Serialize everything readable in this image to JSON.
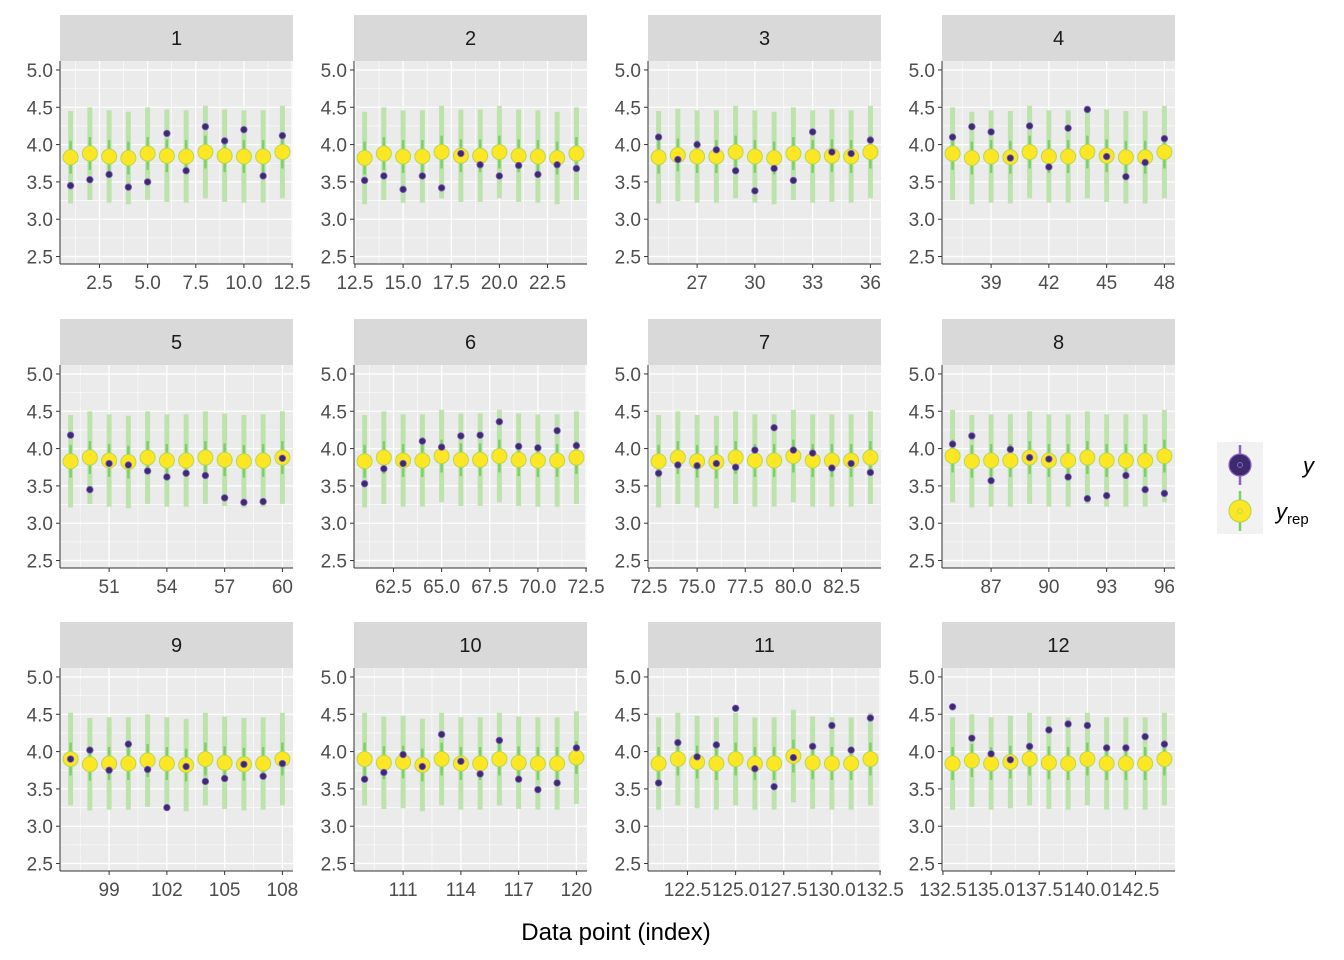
{
  "chart_data": {
    "type": "scatter",
    "xlabel": "Data point (index)",
    "ylabel": "",
    "ylim": [
      2.4,
      5.12
    ],
    "yticks": [
      "2.5",
      "3.0",
      "3.5",
      "4.0",
      "4.5",
      "5.0"
    ],
    "grid": true,
    "legend": {
      "position": "right",
      "entries": [
        {
          "label": "y",
          "kind": "y"
        },
        {
          "label": "y",
          "sub": "rep",
          "kind": "yrep"
        }
      ]
    },
    "colors": {
      "panel_bg": "#ebebeb",
      "strip_bg": "#d9d9d9",
      "grid": "#ffffff",
      "y_point": "#3d2b6e",
      "y_outline": "#8b63c7",
      "yrep_point": "#fde725",
      "yrep_outline": "#b7d94d",
      "interval_outer": "#b9e3a6",
      "interval_inner": "#7bd06a"
    },
    "facets": [
      {
        "label": "1",
        "xlim": [
          0.45,
          12.55
        ],
        "xticks": [
          "2.5",
          "5.0",
          "7.5",
          "10.0",
          "12.5"
        ],
        "x": [
          1,
          2,
          3,
          4,
          5,
          6,
          7,
          8,
          9,
          10,
          11,
          12
        ],
        "y": [
          3.45,
          3.53,
          3.6,
          3.43,
          3.5,
          4.15,
          3.65,
          4.24,
          4.05,
          4.2,
          3.58,
          4.12
        ],
        "yrep": [
          3.83,
          3.88,
          3.84,
          3.82,
          3.88,
          3.85,
          3.84,
          3.9,
          3.85,
          3.84,
          3.84,
          3.9
        ]
      },
      {
        "label": "2",
        "xlim": [
          12.45,
          24.55
        ],
        "xticks": [
          "12.5",
          "15.0",
          "17.5",
          "20.0",
          "22.5"
        ],
        "x": [
          13,
          14,
          15,
          16,
          17,
          18,
          19,
          20,
          21,
          22,
          23,
          24
        ],
        "y": [
          3.52,
          3.58,
          3.4,
          3.58,
          3.42,
          3.88,
          3.73,
          3.58,
          3.72,
          3.6,
          3.73,
          3.68
        ],
        "yrep": [
          3.82,
          3.88,
          3.84,
          3.84,
          3.9,
          3.85,
          3.85,
          3.9,
          3.85,
          3.84,
          3.82,
          3.88
        ]
      },
      {
        "label": "3",
        "xlim": [
          24.45,
          36.55
        ],
        "xticks": [
          "27",
          "30",
          "33",
          "36"
        ],
        "x": [
          25,
          26,
          27,
          28,
          29,
          30,
          31,
          32,
          33,
          34,
          35,
          36
        ],
        "y": [
          4.1,
          3.8,
          4.0,
          3.93,
          3.65,
          3.38,
          3.68,
          3.52,
          4.17,
          3.9,
          3.88,
          4.06
        ],
        "yrep": [
          3.83,
          3.86,
          3.84,
          3.84,
          3.9,
          3.84,
          3.82,
          3.88,
          3.84,
          3.85,
          3.84,
          3.9
        ]
      },
      {
        "label": "4",
        "xlim": [
          36.45,
          48.55
        ],
        "xticks": [
          "39",
          "42",
          "45",
          "48"
        ],
        "x": [
          37,
          38,
          39,
          40,
          41,
          42,
          43,
          44,
          45,
          46,
          47,
          48
        ],
        "y": [
          4.1,
          4.24,
          4.17,
          3.82,
          4.25,
          3.7,
          4.22,
          4.47,
          3.84,
          3.57,
          3.76,
          4.08
        ],
        "yrep": [
          3.88,
          3.82,
          3.84,
          3.83,
          3.9,
          3.84,
          3.84,
          3.9,
          3.85,
          3.83,
          3.83,
          3.9
        ]
      },
      {
        "label": "5",
        "xlim": [
          48.45,
          60.55
        ],
        "xticks": [
          "51",
          "54",
          "57",
          "60"
        ],
        "x": [
          49,
          50,
          51,
          52,
          53,
          54,
          55,
          56,
          57,
          58,
          59,
          60
        ],
        "y": [
          4.18,
          3.45,
          3.8,
          3.78,
          3.7,
          3.62,
          3.67,
          3.64,
          3.34,
          3.28,
          3.29,
          3.87
        ],
        "yrep": [
          3.83,
          3.88,
          3.84,
          3.82,
          3.88,
          3.84,
          3.84,
          3.88,
          3.85,
          3.83,
          3.84,
          3.88
        ]
      },
      {
        "label": "6",
        "xlim": [
          60.45,
          72.55
        ],
        "xticks": [
          "62.5",
          "65.0",
          "67.5",
          "70.0",
          "72.5"
        ],
        "x": [
          61,
          62,
          63,
          64,
          65,
          66,
          67,
          68,
          69,
          70,
          71,
          72
        ],
        "y": [
          3.53,
          3.73,
          3.8,
          4.1,
          4.02,
          4.17,
          4.18,
          4.36,
          4.03,
          4.01,
          4.24,
          4.04
        ],
        "yrep": [
          3.83,
          3.88,
          3.84,
          3.84,
          3.9,
          3.85,
          3.85,
          3.9,
          3.85,
          3.84,
          3.84,
          3.88
        ]
      },
      {
        "label": "7",
        "xlim": [
          72.45,
          84.55
        ],
        "xticks": [
          "72.5",
          "75.0",
          "77.5",
          "80.0",
          "82.5"
        ],
        "x": [
          73,
          74,
          75,
          76,
          77,
          78,
          79,
          80,
          81,
          82,
          83,
          84
        ],
        "y": [
          3.67,
          3.78,
          3.77,
          3.8,
          3.75,
          3.98,
          4.28,
          3.98,
          3.94,
          3.74,
          3.8,
          3.68
        ],
        "yrep": [
          3.83,
          3.88,
          3.83,
          3.82,
          3.88,
          3.84,
          3.84,
          3.9,
          3.84,
          3.84,
          3.84,
          3.88
        ]
      },
      {
        "label": "8",
        "xlim": [
          84.45,
          96.55
        ],
        "xticks": [
          "87",
          "90",
          "93",
          "96"
        ],
        "x": [
          85,
          86,
          87,
          88,
          89,
          90,
          91,
          92,
          93,
          94,
          95,
          96
        ],
        "y": [
          4.06,
          4.17,
          3.57,
          3.99,
          3.88,
          3.86,
          3.62,
          3.33,
          3.37,
          3.64,
          3.45,
          3.4
        ],
        "yrep": [
          3.9,
          3.83,
          3.84,
          3.84,
          3.88,
          3.84,
          3.84,
          3.88,
          3.84,
          3.84,
          3.84,
          3.9
        ]
      },
      {
        "label": "9",
        "xlim": [
          96.45,
          108.55
        ],
        "xticks": [
          "99",
          "102",
          "105",
          "108"
        ],
        "x": [
          97,
          98,
          99,
          100,
          101,
          102,
          103,
          104,
          105,
          106,
          107,
          108
        ],
        "y": [
          3.9,
          4.02,
          3.75,
          4.1,
          3.76,
          3.25,
          3.8,
          3.6,
          3.64,
          3.83,
          3.67,
          3.84
        ],
        "yrep": [
          3.9,
          3.83,
          3.84,
          3.84,
          3.88,
          3.84,
          3.82,
          3.9,
          3.85,
          3.83,
          3.84,
          3.9
        ]
      },
      {
        "label": "10",
        "xlim": [
          108.45,
          120.55
        ],
        "xticks": [
          "111",
          "114",
          "117",
          "120"
        ],
        "x": [
          109,
          110,
          111,
          112,
          113,
          114,
          115,
          116,
          117,
          118,
          119,
          120
        ],
        "y": [
          3.63,
          3.72,
          3.96,
          3.8,
          4.23,
          3.87,
          3.7,
          4.15,
          3.63,
          3.49,
          3.58,
          4.05
        ],
        "yrep": [
          3.9,
          3.85,
          3.86,
          3.82,
          3.9,
          3.84,
          3.84,
          3.9,
          3.85,
          3.84,
          3.84,
          3.92
        ]
      },
      {
        "label": "11",
        "xlim": [
          120.45,
          132.55
        ],
        "xticks": [
          "122.5",
          "125.0",
          "127.5",
          "130.0",
          "132.5"
        ],
        "x": [
          121,
          122,
          123,
          124,
          125,
          126,
          127,
          128,
          129,
          130,
          131,
          132
        ],
        "y": [
          3.58,
          4.12,
          3.93,
          4.09,
          4.58,
          3.77,
          3.53,
          3.92,
          4.07,
          4.35,
          4.02,
          4.45
        ],
        "yrep": [
          3.84,
          3.9,
          3.86,
          3.84,
          3.9,
          3.84,
          3.84,
          3.94,
          3.85,
          3.84,
          3.84,
          3.9
        ]
      },
      {
        "label": "12",
        "xlim": [
          132.45,
          144.55
        ],
        "xticks": [
          "132.5",
          "135.0",
          "137.5",
          "140.0",
          "142.5"
        ],
        "x": [
          133,
          134,
          135,
          136,
          137,
          138,
          139,
          140,
          141,
          142,
          143,
          144
        ],
        "y": [
          4.6,
          4.18,
          3.97,
          3.89,
          4.07,
          4.29,
          4.37,
          4.35,
          4.05,
          4.05,
          4.2,
          4.1
        ],
        "yrep": [
          3.84,
          3.88,
          3.84,
          3.86,
          3.9,
          3.85,
          3.84,
          3.9,
          3.84,
          3.84,
          3.84,
          3.9
        ]
      }
    ]
  }
}
